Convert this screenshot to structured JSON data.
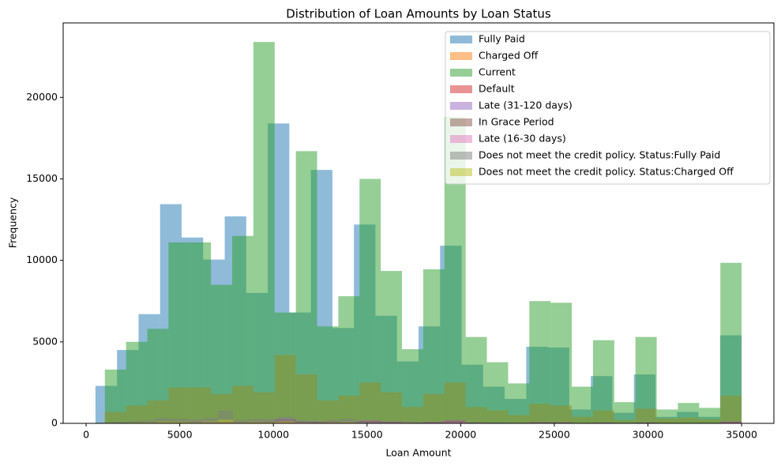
{
  "chart_data": {
    "type": "histogram",
    "title": "Distribution of Loan Amounts by Loan Status",
    "xlabel": "Loan Amount",
    "ylabel": "Frequency",
    "xlim": [
      -1225,
      36725
    ],
    "ylim": [
      0,
      24570
    ],
    "xticks": [
      0,
      5000,
      10000,
      15000,
      20000,
      25000,
      30000,
      35000
    ],
    "yticks": [
      0,
      5000,
      10000,
      15000,
      20000
    ],
    "legend": "upper right",
    "opacity": 0.5,
    "series": [
      {
        "name": "Fully Paid",
        "color": "#1f77b4",
        "bins": [
          500,
          1650,
          2800,
          3950,
          5100,
          6250,
          7400,
          8550,
          9700,
          10850,
          12000,
          13150,
          14300,
          15450,
          16600,
          17750,
          18900,
          20050,
          21200,
          22350,
          23500,
          24650,
          25800,
          26950,
          28100,
          29250,
          30400,
          31550,
          32700,
          33850,
          35000
        ],
        "values": [
          2300,
          4500,
          6700,
          13450,
          11400,
          10050,
          12700,
          8000,
          18400,
          6800,
          15550,
          5850,
          12200,
          6600,
          3800,
          5950,
          10900,
          3600,
          2250,
          1500,
          4700,
          4650,
          850,
          2900,
          650,
          3000,
          400,
          700,
          400,
          5400
        ]
      },
      {
        "name": "Charged Off",
        "color": "#ff7f0e",
        "bins": [
          1000,
          2133,
          3267,
          4400,
          5533,
          6667,
          7800,
          8933,
          10067,
          11200,
          12333,
          13467,
          14600,
          15733,
          16867,
          18000,
          19133,
          20267,
          21400,
          22533,
          23667,
          24800,
          25933,
          27067,
          28200,
          29333,
          30467,
          31600,
          32733,
          33867,
          35000
        ],
        "values": [
          700,
          1100,
          1400,
          2200,
          2200,
          1800,
          2300,
          1900,
          4200,
          3000,
          1400,
          1700,
          2500,
          1900,
          1000,
          1800,
          2500,
          1000,
          800,
          500,
          1200,
          1100,
          400,
          800,
          200,
          900,
          300,
          350,
          250,
          1700
        ]
      },
      {
        "name": "Current",
        "color": "#2ca02c",
        "bins": [
          1000,
          2133,
          3267,
          4400,
          5533,
          6667,
          7800,
          8933,
          10067,
          11200,
          12333,
          13467,
          14600,
          15733,
          16867,
          18000,
          19133,
          20267,
          21400,
          22533,
          23667,
          24800,
          25933,
          27067,
          28200,
          29333,
          30467,
          31600,
          32733,
          33867,
          35000
        ],
        "values": [
          3300,
          5000,
          5800,
          11100,
          11100,
          8500,
          11500,
          23400,
          6800,
          16700,
          5950,
          7800,
          15000,
          9350,
          4550,
          9450,
          18800,
          5300,
          3750,
          2450,
          7500,
          7400,
          2250,
          5100,
          1300,
          5300,
          850,
          1250,
          950,
          9850
        ]
      },
      {
        "name": "Default",
        "color": "#d62728",
        "bins": [
          1000,
          2133,
          3267,
          4400,
          5533,
          6667,
          7800,
          8933,
          10067,
          11200,
          12333,
          13467,
          14600,
          15733,
          16867,
          18000,
          19133,
          20267,
          21400,
          22533,
          23667,
          24800,
          25933,
          27067,
          28200,
          29333,
          30467,
          31600,
          32733,
          33867,
          35000
        ],
        "values": [
          0,
          1,
          2,
          3,
          6,
          5,
          4,
          6,
          14,
          7,
          6,
          6,
          9,
          6,
          3,
          5,
          9,
          3,
          2,
          1,
          4,
          3,
          1,
          2,
          0,
          3,
          1,
          1,
          1,
          6
        ]
      },
      {
        "name": "Late (31-120 days)",
        "color": "#9467bd",
        "bins": [
          1000,
          2133,
          3267,
          4400,
          5533,
          6667,
          7800,
          8933,
          10067,
          11200,
          12333,
          13467,
          14600,
          15733,
          16867,
          18000,
          19133,
          20267,
          21400,
          22533,
          23667,
          24800,
          25933,
          27067,
          28200,
          29333,
          30467,
          31600,
          32733,
          33867,
          35000
        ],
        "values": [
          10,
          20,
          40,
          60,
          120,
          110,
          90,
          130,
          300,
          150,
          120,
          130,
          190,
          120,
          60,
          100,
          200,
          60,
          40,
          30,
          80,
          70,
          20,
          50,
          10,
          60,
          20,
          20,
          15,
          120
        ]
      },
      {
        "name": "In Grace Period",
        "color": "#8c564b",
        "bins": [
          1000,
          2133,
          3267,
          4400,
          5533,
          6667,
          7800,
          8933,
          10067,
          11200,
          12333,
          13467,
          14600,
          15733,
          16867,
          18000,
          19133,
          20267,
          21400,
          22533,
          23667,
          24800,
          25933,
          27067,
          28200,
          29333,
          30467,
          31600,
          32733,
          33867,
          35000
        ],
        "values": [
          5,
          12,
          25,
          40,
          90,
          80,
          65,
          95,
          230,
          110,
          90,
          100,
          150,
          90,
          45,
          75,
          160,
          45,
          30,
          25,
          60,
          55,
          15,
          40,
          8,
          45,
          15,
          15,
          10,
          95
        ]
      },
      {
        "name": "Late (16-30 days)",
        "color": "#e377c2",
        "bins": [
          1000,
          2133,
          3267,
          4400,
          5533,
          6667,
          7800,
          8933,
          10067,
          11200,
          12333,
          13467,
          14600,
          15733,
          16867,
          18000,
          19133,
          20267,
          21400,
          22533,
          23667,
          24800,
          25933,
          27067,
          28200,
          29333,
          30467,
          31600,
          32733,
          33867,
          35000
        ],
        "values": [
          2,
          5,
          10,
          15,
          40,
          35,
          30,
          40,
          100,
          50,
          40,
          45,
          65,
          40,
          20,
          35,
          70,
          20,
          15,
          10,
          25,
          25,
          6,
          18,
          4,
          20,
          6,
          6,
          5,
          40
        ]
      },
      {
        "name": "Does not meet the credit policy. Status:Fully Paid",
        "color": "#7f7f7f",
        "bins": [
          500,
          1317,
          2133,
          2950,
          3767,
          4583,
          5400,
          6217,
          7033,
          7850,
          8667,
          9483,
          10300,
          11117,
          11933,
          12750,
          13567,
          14383,
          15200,
          16017,
          16833,
          17650,
          18467,
          19283,
          20100,
          20917,
          21733,
          22550,
          23367,
          24183,
          25000
        ],
        "values": [
          40,
          90,
          140,
          190,
          330,
          290,
          240,
          330,
          780,
          210,
          290,
          250,
          400,
          160,
          110,
          200,
          300,
          90,
          60,
          45,
          120,
          60,
          30,
          40,
          20,
          50,
          15,
          10,
          10,
          90
        ]
      },
      {
        "name": "Does not meet the credit policy. Status:Charged Off",
        "color": "#bcbd22",
        "bins": [
          500,
          1317,
          2133,
          2950,
          3767,
          4583,
          5400,
          6217,
          7033,
          7850,
          8667,
          9483,
          10300,
          11117,
          11933,
          12750,
          13567,
          14383,
          15200,
          16017,
          16833,
          17650,
          18467,
          19283,
          20100,
          20917,
          21733,
          22550,
          23367,
          24183,
          25000
        ],
        "values": [
          15,
          30,
          45,
          60,
          100,
          90,
          75,
          110,
          230,
          70,
          90,
          80,
          120,
          50,
          35,
          60,
          90,
          30,
          20,
          15,
          40,
          20,
          10,
          15,
          6,
          15,
          5,
          3,
          3,
          30
        ]
      }
    ]
  }
}
